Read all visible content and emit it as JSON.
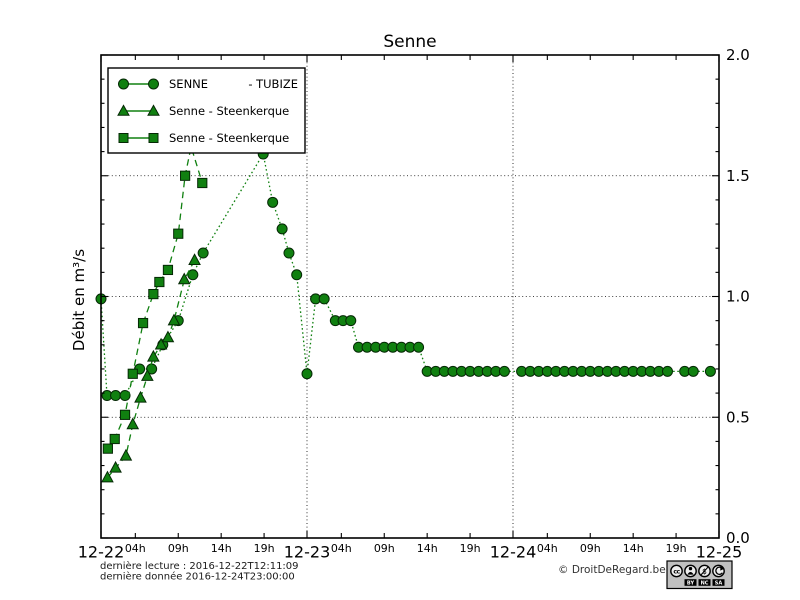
{
  "title": "Senne",
  "ylabel": "Débit en m³/s",
  "legend": [
    {
      "label": "SENNE",
      "label_right": "- TUBIZE",
      "marker": "circle",
      "linestyle": "dotted"
    },
    {
      "label": "Senne - Steenkerque",
      "label_right": "",
      "marker": "triangle",
      "linestyle": "dashed"
    },
    {
      "label": "Senne - Steenkerque",
      "label_right": "",
      "marker": "square",
      "linestyle": "dashed"
    }
  ],
  "footer": {
    "last_reading": "dernière lecture : 2016-12-22T12:11:09",
    "last_data": "dernière donnée  2016-12-24T23:00:00",
    "copyright": "© DroitDeRegard.be",
    "license": {
      "cc": "cc",
      "labels": [
        "BY",
        "NC",
        "SA"
      ]
    }
  },
  "colors": {
    "series_green": "#108010",
    "marker_edge": "#052805",
    "cc_badge_bg": "#c0c0c0"
  },
  "chart_data": {
    "type": "line",
    "title": "Senne",
    "xlabel": "",
    "ylabel": "Débit en m³/s",
    "x_unit": "hours since 2016-12-22 00:00",
    "xlim": [
      0,
      72
    ],
    "ylim": [
      0.0,
      2.0
    ],
    "grid": true,
    "grid_y": [
      0.5,
      1.0,
      1.5
    ],
    "grid_x_hours": [
      24,
      48
    ],
    "legend_position": "upper left",
    "yticks": [
      0.0,
      0.5,
      1.0,
      1.5,
      2.0
    ],
    "ytick_labels": [
      "0.0",
      "0.5",
      "1.0",
      "1.5",
      "2.0"
    ],
    "y_minor_step": 0.1,
    "day_hours": [
      0,
      24,
      48,
      72
    ],
    "day_labels": [
      "12-22",
      "12-23",
      "12-24",
      "12-25"
    ],
    "hour_tick_offsets": [
      4,
      9,
      14,
      19
    ],
    "hour_labels": [
      "04h",
      "09h",
      "14h",
      "19h"
    ],
    "series": [
      {
        "name": "SENNE - TUBIZE",
        "marker": "circle",
        "linestyle": "dotted",
        "points": [
          [
            0,
            0.99
          ],
          [
            0.7,
            0.59
          ],
          [
            1.7,
            0.59
          ],
          [
            2.8,
            0.59
          ],
          [
            4.5,
            0.7
          ],
          [
            5.9,
            0.7
          ],
          [
            7.2,
            0.8
          ],
          [
            9.0,
            0.9
          ],
          [
            10.7,
            1.09
          ],
          [
            11.9,
            1.18
          ],
          [
            18.9,
            1.59
          ],
          [
            20.0,
            1.39
          ],
          [
            21.1,
            1.28
          ],
          [
            21.9,
            1.18
          ],
          [
            22.8,
            1.09
          ],
          [
            24,
            0.68
          ],
          [
            25,
            0.99
          ],
          [
            26,
            0.99
          ],
          [
            27.3,
            0.9
          ],
          [
            28.2,
            0.9
          ],
          [
            29.1,
            0.9
          ],
          [
            30,
            0.79
          ],
          [
            31,
            0.79
          ],
          [
            32,
            0.79
          ],
          [
            33,
            0.79
          ],
          [
            34,
            0.79
          ],
          [
            35,
            0.79
          ],
          [
            36,
            0.79
          ],
          [
            37,
            0.79
          ],
          [
            38,
            0.69
          ],
          [
            39,
            0.69
          ],
          [
            40,
            0.69
          ],
          [
            41,
            0.69
          ],
          [
            42,
            0.69
          ],
          [
            43,
            0.69
          ],
          [
            44,
            0.69
          ],
          [
            45,
            0.69
          ],
          [
            46,
            0.69
          ],
          [
            47,
            0.69
          ],
          [
            49,
            0.69
          ],
          [
            50,
            0.69
          ],
          [
            51,
            0.69
          ],
          [
            52,
            0.69
          ],
          [
            53,
            0.69
          ],
          [
            54,
            0.69
          ],
          [
            55,
            0.69
          ],
          [
            56,
            0.69
          ],
          [
            57,
            0.69
          ],
          [
            58,
            0.69
          ],
          [
            59,
            0.69
          ],
          [
            60,
            0.69
          ],
          [
            61,
            0.69
          ],
          [
            62,
            0.69
          ],
          [
            63,
            0.69
          ],
          [
            64,
            0.69
          ],
          [
            65,
            0.69
          ],
          [
            66,
            0.69
          ],
          [
            68,
            0.69
          ],
          [
            69,
            0.69
          ],
          [
            71,
            0.69
          ]
        ]
      },
      {
        "name": "Senne - Steenkerque",
        "marker": "triangle",
        "linestyle": "dashed",
        "points": [
          [
            0.75,
            0.25
          ],
          [
            1.7,
            0.29
          ],
          [
            2.9,
            0.34
          ],
          [
            3.7,
            0.47
          ],
          [
            4.6,
            0.58
          ],
          [
            5.4,
            0.67
          ],
          [
            6.1,
            0.75
          ],
          [
            7.0,
            0.8
          ],
          [
            7.8,
            0.83
          ],
          [
            8.5,
            0.9
          ],
          [
            9.7,
            1.07
          ],
          [
            10.9,
            1.15
          ]
        ]
      },
      {
        "name": "Senne - Steenkerque",
        "marker": "square",
        "linestyle": "dashed",
        "points": [
          [
            0.8,
            0.37
          ],
          [
            1.6,
            0.41
          ],
          [
            2.8,
            0.51
          ],
          [
            3.7,
            0.68
          ],
          [
            4.9,
            0.89
          ],
          [
            6.1,
            1.01
          ],
          [
            6.8,
            1.06
          ],
          [
            7.8,
            1.11
          ],
          [
            9.0,
            1.26
          ],
          [
            9.8,
            1.5
          ],
          [
            10.5,
            1.62
          ],
          [
            11.8,
            1.47
          ]
        ]
      }
    ]
  }
}
